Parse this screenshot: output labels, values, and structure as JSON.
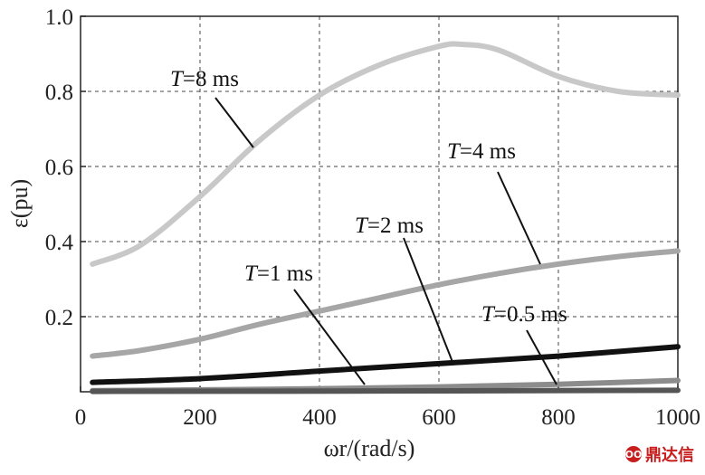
{
  "chart_data": {
    "type": "line",
    "xlabel": "ωr/(rad/s)",
    "ylabel": "ε(pu)",
    "xlim": [
      0,
      1000
    ],
    "ylim": [
      0,
      1.0
    ],
    "xticks": [
      "0",
      "200",
      "400",
      "600",
      "800",
      "1000"
    ],
    "yticks": [
      "0.2",
      "0.4",
      "0.6",
      "0.8",
      "1.0"
    ],
    "grid": true,
    "series": [
      {
        "name": "T=8 ms",
        "color": "#c8c8c8",
        "x": [
          20,
          100,
          200,
          300,
          400,
          500,
          600,
          640,
          700,
          800,
          900,
          1000
        ],
        "values": [
          0.34,
          0.39,
          0.52,
          0.67,
          0.79,
          0.87,
          0.92,
          0.925,
          0.91,
          0.84,
          0.8,
          0.79
        ]
      },
      {
        "name": "T=4 ms",
        "color": "#a6a6a6",
        "x": [
          20,
          100,
          200,
          300,
          400,
          500,
          600,
          700,
          800,
          900,
          1000
        ],
        "values": [
          0.095,
          0.11,
          0.14,
          0.18,
          0.215,
          0.25,
          0.285,
          0.315,
          0.34,
          0.36,
          0.375
        ]
      },
      {
        "name": "T=2 ms",
        "color": "#111111",
        "x": [
          20,
          200,
          400,
          600,
          800,
          1000
        ],
        "values": [
          0.025,
          0.035,
          0.055,
          0.075,
          0.095,
          0.12
        ]
      },
      {
        "name": "T=1 ms",
        "color": "#8c8c8c",
        "x": [
          20,
          200,
          400,
          600,
          800,
          1000
        ],
        "values": [
          0.003,
          0.005,
          0.008,
          0.013,
          0.02,
          0.03
        ]
      },
      {
        "name": "T=0.5 ms",
        "color": "#555555",
        "x": [
          20,
          500,
          1000
        ],
        "values": [
          0.001,
          0.002,
          0.004
        ]
      }
    ]
  },
  "labels": {
    "t8": {
      "italic": "T",
      "rest": "=8 ms"
    },
    "t4": {
      "italic": "T",
      "rest": "=4 ms"
    },
    "t2": {
      "italic": "T",
      "rest": "=2 ms"
    },
    "t1": {
      "italic": "T",
      "rest": "=1 ms"
    },
    "t05": {
      "italic": "T",
      "rest": "=0.5 ms"
    }
  },
  "watermark": {
    "text": "鼎达信",
    "logo": "OO"
  }
}
